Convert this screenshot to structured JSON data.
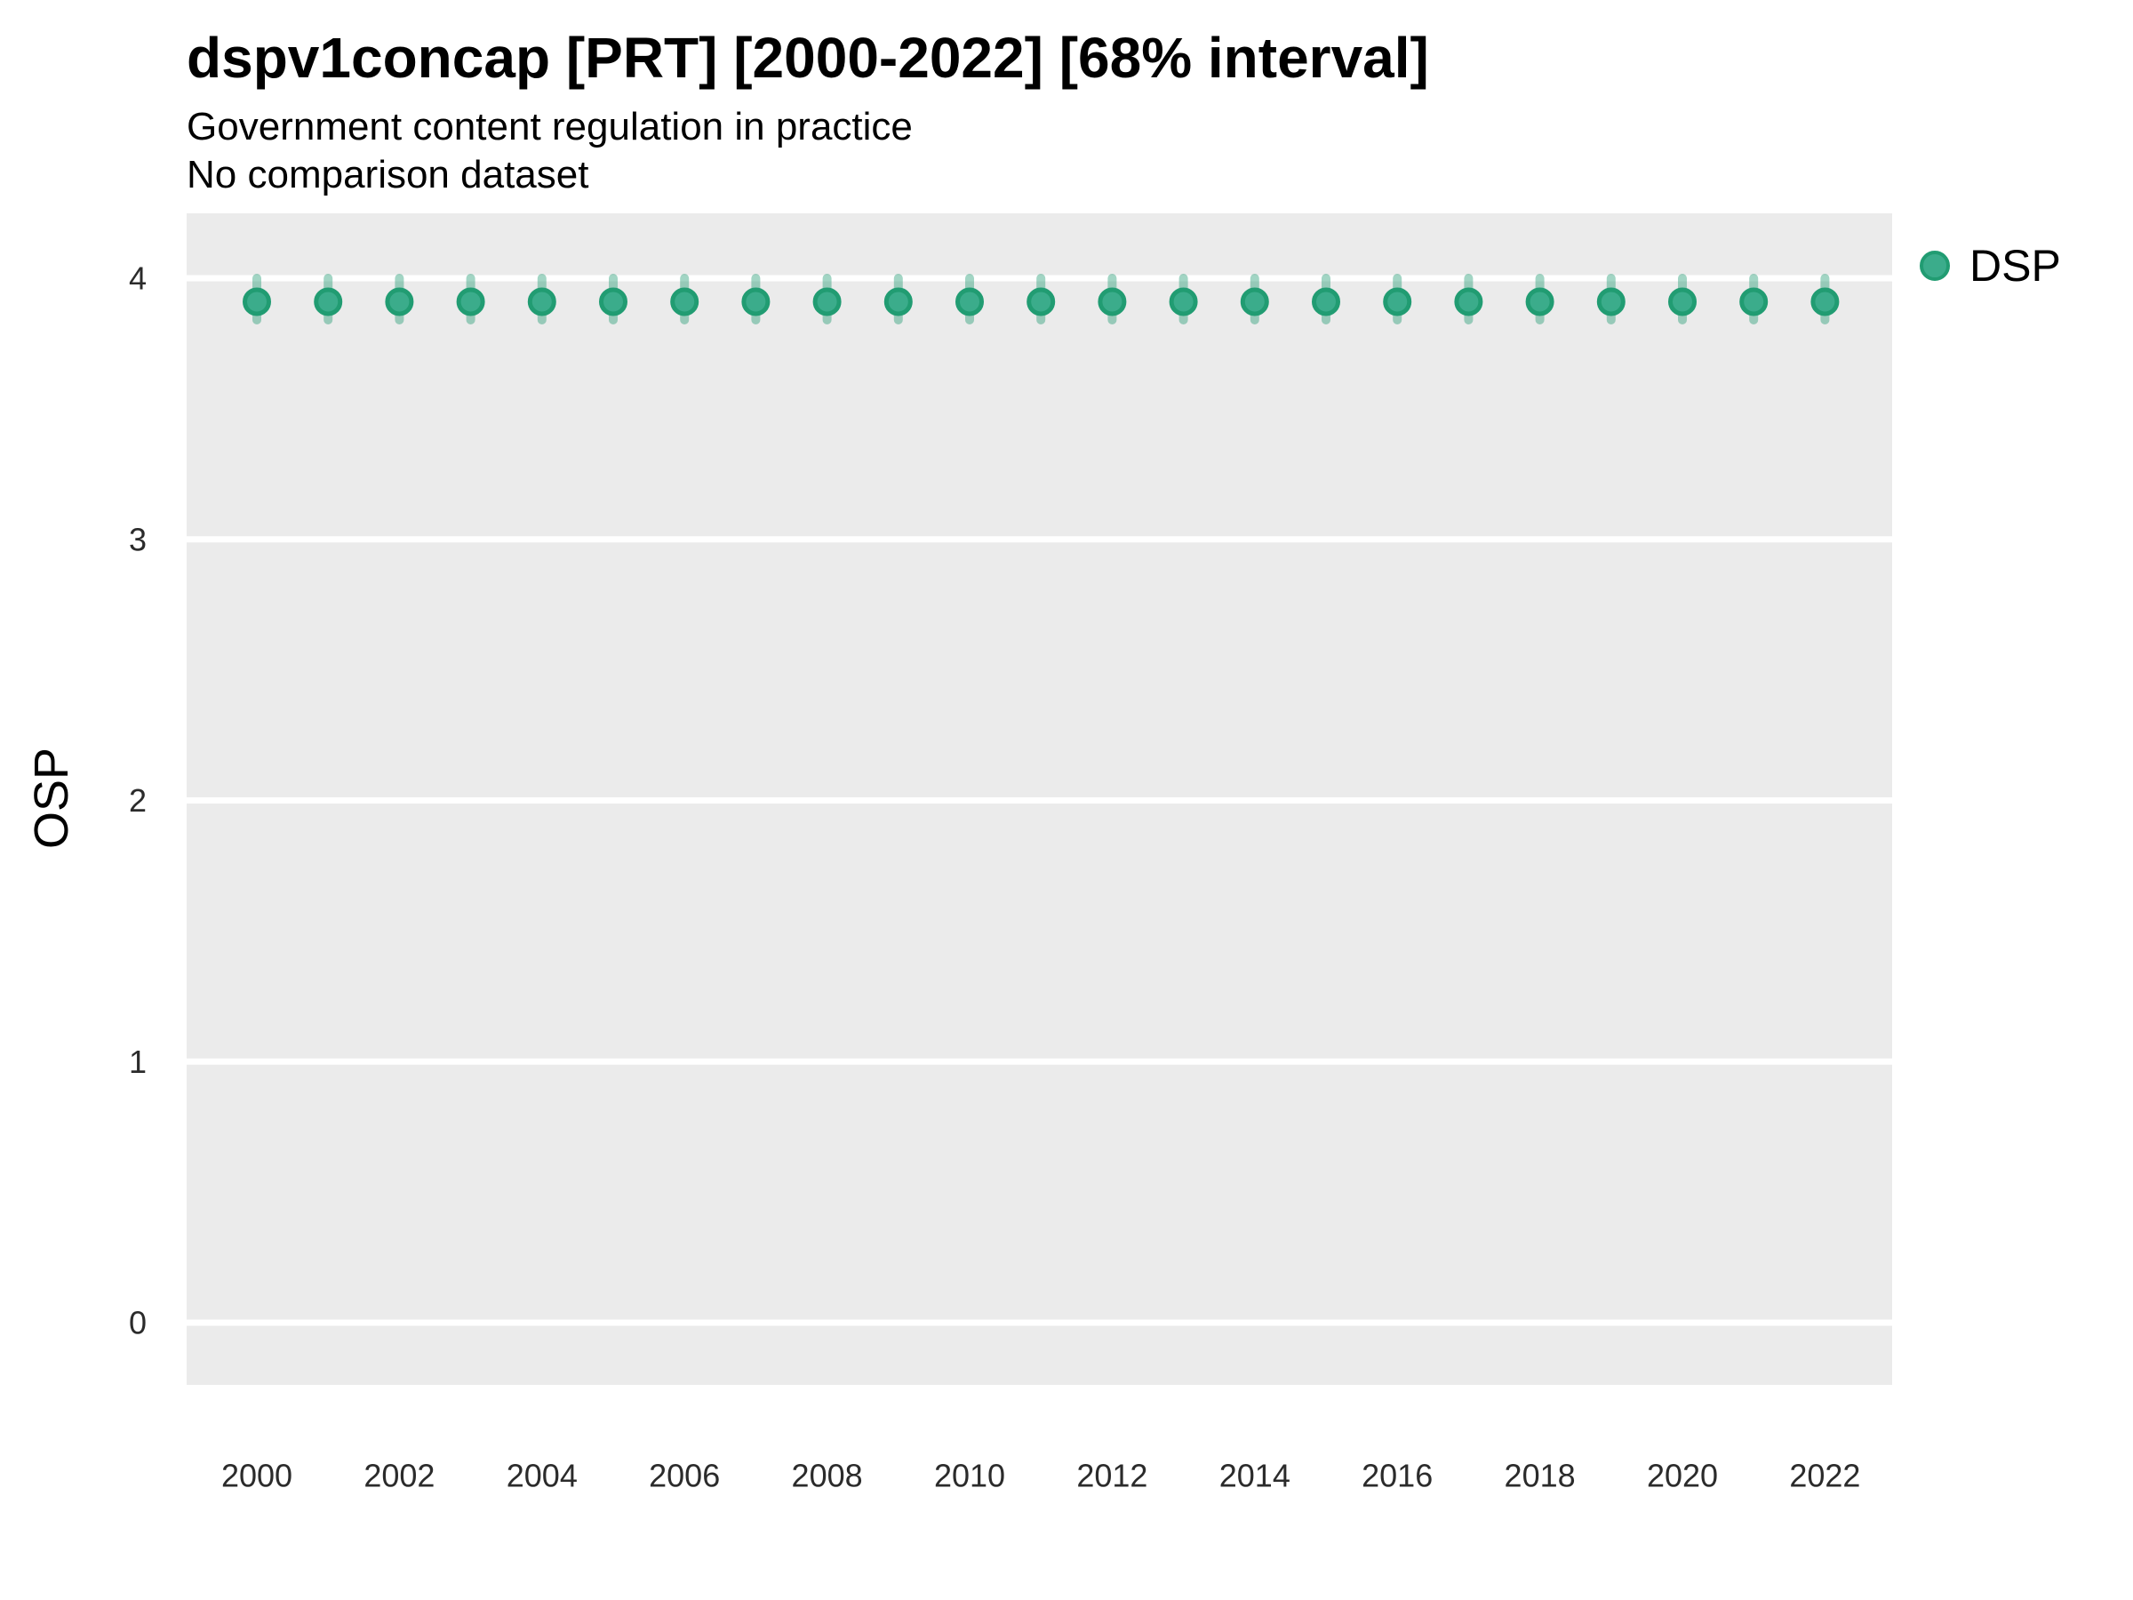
{
  "header": {
    "title": "dspv1concap [PRT] [2000-2022] [68% interval]",
    "subtitle1": "Government content regulation in practice",
    "subtitle2": "No comparison dataset"
  },
  "legend": {
    "items": [
      {
        "label": "DSP",
        "color": "#3bac8b"
      }
    ]
  },
  "chart_data": {
    "type": "scatter",
    "title": "dspv1concap [PRT] [2000-2022] [68% interval]",
    "subtitle": "Government content regulation in practice",
    "note": "No comparison dataset",
    "variable": "dspv1concap",
    "country": "PRT",
    "year_range": "2000-2022",
    "interval": "68%",
    "xlabel": "",
    "ylabel": "OSP",
    "ylim": [
      -0.25,
      4.25
    ],
    "yticks": [
      0,
      1,
      2,
      3,
      4
    ],
    "xticks": [
      2000,
      2002,
      2004,
      2006,
      2008,
      2010,
      2012,
      2014,
      2016,
      2018,
      2020,
      2022
    ],
    "grid": "horizontal-major only, white on gray panel",
    "legend_position": "right-top",
    "x": [
      2000,
      2001,
      2002,
      2003,
      2004,
      2005,
      2006,
      2007,
      2008,
      2009,
      2010,
      2011,
      2012,
      2013,
      2014,
      2015,
      2016,
      2017,
      2018,
      2019,
      2020,
      2021,
      2022
    ],
    "series": [
      {
        "name": "DSP",
        "values": [
          3.91,
          3.91,
          3.91,
          3.91,
          3.91,
          3.91,
          3.91,
          3.91,
          3.91,
          3.91,
          3.91,
          3.91,
          3.91,
          3.91,
          3.91,
          3.91,
          3.91,
          3.91,
          3.91,
          3.91,
          3.91,
          3.91,
          3.91
        ],
        "lower": [
          3.84,
          3.84,
          3.84,
          3.84,
          3.84,
          3.84,
          3.84,
          3.84,
          3.84,
          3.84,
          3.84,
          3.84,
          3.84,
          3.84,
          3.84,
          3.84,
          3.84,
          3.84,
          3.84,
          3.84,
          3.84,
          3.84,
          3.84
        ],
        "upper": [
          4.0,
          4.0,
          4.0,
          4.0,
          4.0,
          4.0,
          4.0,
          4.0,
          4.0,
          4.0,
          4.0,
          4.0,
          4.0,
          4.0,
          4.0,
          4.0,
          4.0,
          4.0,
          4.0,
          4.0,
          4.0,
          4.0,
          4.0
        ]
      }
    ],
    "colors": {
      "point_fill": "#3bac8b",
      "point_stroke": "#219c72",
      "interval": "rgba(33, 156, 114, 0.42)",
      "panel_bg": "#ebebeb",
      "gridline": "#ffffff",
      "tick_text": "#2b2b2b",
      "text": "#000000"
    }
  }
}
